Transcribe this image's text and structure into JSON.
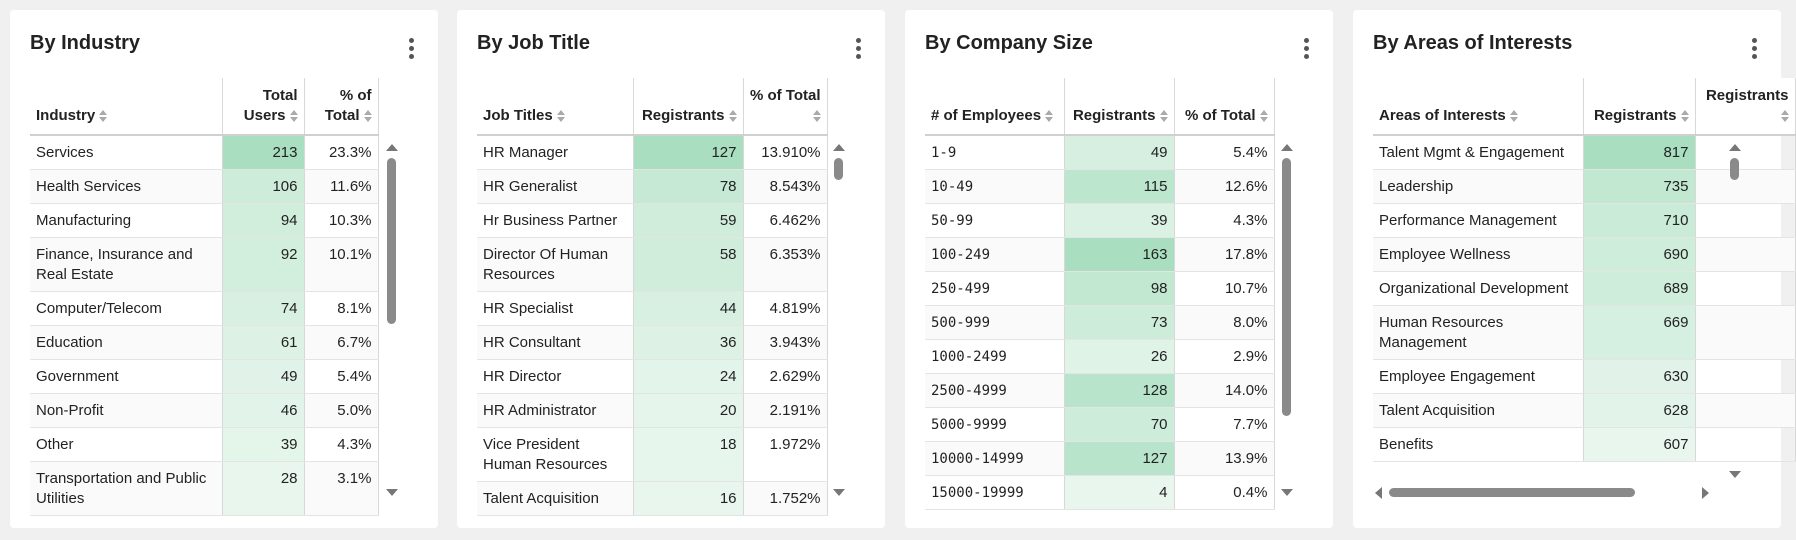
{
  "cards": [
    {
      "title": "By Industry",
      "columns": [
        "Industry",
        "Total Users",
        "% of Total"
      ],
      "rows": [
        [
          "Services",
          "213",
          "23.3%"
        ],
        [
          "Health Services",
          "106",
          "11.6%"
        ],
        [
          "Manufacturing",
          "94",
          "10.3%"
        ],
        [
          "Finance, Insurance and Real Estate",
          "92",
          "10.1%"
        ],
        [
          "Computer/Telecom",
          "74",
          "8.1%"
        ],
        [
          "Education",
          "61",
          "6.7%"
        ],
        [
          "Government",
          "49",
          "5.4%"
        ],
        [
          "Non-Profit",
          "46",
          "5.0%"
        ],
        [
          "Other",
          "39",
          "4.3%"
        ],
        [
          "Transportation and Public Utilities",
          "28",
          "3.1%"
        ]
      ]
    },
    {
      "title": "By Job Title",
      "columns": [
        "Job Titles",
        "Registrants",
        "% of Total"
      ],
      "rows": [
        [
          "HR Manager",
          "127",
          "13.910%"
        ],
        [
          "HR Generalist",
          "78",
          "8.543%"
        ],
        [
          "Hr Business Partner",
          "59",
          "6.462%"
        ],
        [
          "Director Of Human Resources",
          "58",
          "6.353%"
        ],
        [
          "HR Specialist",
          "44",
          "4.819%"
        ],
        [
          "HR Consultant",
          "36",
          "3.943%"
        ],
        [
          "HR Director",
          "24",
          "2.629%"
        ],
        [
          "HR Administrator",
          "20",
          "2.191%"
        ],
        [
          "Vice President Human Resources",
          "18",
          "1.972%"
        ],
        [
          "Talent Acquisition",
          "16",
          "1.752%"
        ]
      ]
    },
    {
      "title": "By Company Size",
      "columns": [
        "# of Employees",
        "Registrants",
        "% of Total"
      ],
      "rows": [
        [
          "1-9",
          "49",
          "5.4%"
        ],
        [
          "10-49",
          "115",
          "12.6%"
        ],
        [
          "50-99",
          "39",
          "4.3%"
        ],
        [
          "100-249",
          "163",
          "17.8%"
        ],
        [
          "250-499",
          "98",
          "10.7%"
        ],
        [
          "500-999",
          "73",
          "8.0%"
        ],
        [
          "1000-2499",
          "26",
          "2.9%"
        ],
        [
          "2500-4999",
          "128",
          "14.0%"
        ],
        [
          "5000-9999",
          "70",
          "7.7%"
        ],
        [
          "10000-14999",
          "127",
          "13.9%"
        ],
        [
          "15000-19999",
          "4",
          "0.4%"
        ]
      ]
    },
    {
      "title": "By Areas of Interests",
      "columns": [
        "Areas of Interests",
        "Registrants",
        "Registrants"
      ],
      "rows": [
        [
          "Talent Mgmt & Engagement",
          "817",
          ""
        ],
        [
          "Leadership",
          "735",
          ""
        ],
        [
          "Performance Management",
          "710",
          ""
        ],
        [
          "Employee Wellness",
          "690",
          ""
        ],
        [
          "Organizational Development",
          "689",
          ""
        ],
        [
          "Human Resources Management",
          "669",
          ""
        ],
        [
          "Employee Engagement",
          "630",
          ""
        ],
        [
          "Talent Acquisition",
          "628",
          ""
        ],
        [
          "Benefits",
          "607",
          ""
        ]
      ]
    }
  ],
  "colors": {
    "heat_low": "#f3faf5",
    "heat_high": "#a9dfc0",
    "background": "#f0f0f0"
  }
}
